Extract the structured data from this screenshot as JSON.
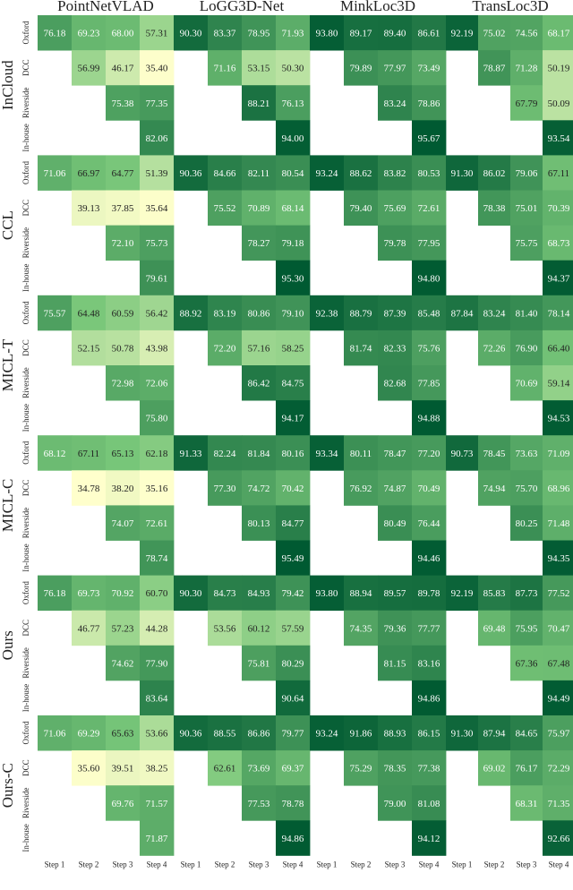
{
  "chart_data": {
    "type": "heatmap",
    "columns": [
      "PointNetVLAD",
      "LoGG3D-Net",
      "MinkLoc3D",
      "TransLoc3D"
    ],
    "rows": [
      "InCloud",
      "CCL",
      "MICL-T",
      "MICL-C",
      "Ours",
      "Ours-C"
    ],
    "subrow_labels": [
      "Oxford",
      "DCC",
      "Riverside",
      "In-house"
    ],
    "step_labels": [
      "Step 1",
      "Step 2",
      "Step 3",
      "Step 4"
    ],
    "colormap": {
      "name": "YlGn",
      "low": "#ffffcc",
      "mid": "#78c679",
      "high": "#005a32",
      "vmin": 35,
      "vmax": 95
    },
    "values": {
      "InCloud": {
        "PointNetVLAD": [
          [
            76.18,
            69.23,
            68.0,
            57.31
          ],
          [
            null,
            56.99,
            46.17,
            35.4
          ],
          [
            null,
            null,
            75.38,
            77.35
          ],
          [
            null,
            null,
            null,
            82.06
          ]
        ],
        "LoGG3D-Net": [
          [
            90.3,
            83.37,
            78.95,
            71.93
          ],
          [
            null,
            71.16,
            53.15,
            50.3
          ],
          [
            null,
            null,
            88.21,
            76.13
          ],
          [
            null,
            null,
            null,
            94.0
          ]
        ],
        "MinkLoc3D": [
          [
            93.8,
            89.17,
            89.4,
            86.61
          ],
          [
            null,
            79.89,
            77.97,
            73.49
          ],
          [
            null,
            null,
            83.24,
            78.86
          ],
          [
            null,
            null,
            null,
            95.67
          ]
        ],
        "TransLoc3D": [
          [
            92.19,
            75.02,
            74.56,
            68.17
          ],
          [
            null,
            78.87,
            71.28,
            50.19
          ],
          [
            null,
            null,
            67.79,
            50.09
          ],
          [
            null,
            null,
            null,
            93.54
          ]
        ]
      },
      "CCL": {
        "PointNetVLAD": [
          [
            71.06,
            66.97,
            64.77,
            51.39
          ],
          [
            null,
            39.13,
            37.85,
            35.64
          ],
          [
            null,
            null,
            72.1,
            75.73
          ],
          [
            null,
            null,
            null,
            79.61
          ]
        ],
        "LoGG3D-Net": [
          [
            90.36,
            84.66,
            82.11,
            80.54
          ],
          [
            null,
            75.52,
            70.89,
            68.14
          ],
          [
            null,
            null,
            78.27,
            79.18
          ],
          [
            null,
            null,
            null,
            95.3
          ]
        ],
        "MinkLoc3D": [
          [
            93.24,
            88.62,
            83.82,
            80.53
          ],
          [
            null,
            79.4,
            75.69,
            72.61
          ],
          [
            null,
            null,
            79.78,
            77.95
          ],
          [
            null,
            null,
            null,
            94.8
          ]
        ],
        "TransLoc3D": [
          [
            91.3,
            86.02,
            79.06,
            67.11
          ],
          [
            null,
            78.38,
            75.01,
            70.39
          ],
          [
            null,
            null,
            75.75,
            68.73
          ],
          [
            null,
            null,
            null,
            94.37
          ]
        ]
      },
      "MICL-T": {
        "PointNetVLAD": [
          [
            75.57,
            64.48,
            60.59,
            56.42
          ],
          [
            null,
            52.15,
            50.78,
            43.98
          ],
          [
            null,
            null,
            72.98,
            72.06
          ],
          [
            null,
            null,
            null,
            75.8
          ]
        ],
        "LoGG3D-Net": [
          [
            88.92,
            83.19,
            80.86,
            79.1
          ],
          [
            null,
            72.2,
            57.16,
            58.25
          ],
          [
            null,
            null,
            86.42,
            84.75
          ],
          [
            null,
            null,
            null,
            94.17
          ]
        ],
        "MinkLoc3D": [
          [
            92.38,
            88.79,
            87.39,
            85.48
          ],
          [
            null,
            81.74,
            82.33,
            75.76
          ],
          [
            null,
            null,
            82.68,
            77.85
          ],
          [
            null,
            null,
            null,
            94.88
          ]
        ],
        "TransLoc3D": [
          [
            87.84,
            83.24,
            81.4,
            78.14
          ],
          [
            null,
            72.26,
            76.9,
            66.4
          ],
          [
            null,
            null,
            70.69,
            59.14
          ],
          [
            null,
            null,
            null,
            94.53
          ]
        ]
      },
      "MICL-C": {
        "PointNetVLAD": [
          [
            68.12,
            67.11,
            65.13,
            62.18
          ],
          [
            null,
            34.78,
            38.2,
            35.16
          ],
          [
            null,
            null,
            74.07,
            72.61
          ],
          [
            null,
            null,
            null,
            78.74
          ]
        ],
        "LoGG3D-Net": [
          [
            91.33,
            82.24,
            81.84,
            80.16
          ],
          [
            null,
            77.3,
            74.72,
            70.42
          ],
          [
            null,
            null,
            80.13,
            84.77
          ],
          [
            null,
            null,
            null,
            95.49
          ]
        ],
        "MinkLoc3D": [
          [
            93.34,
            80.11,
            78.47,
            77.2
          ],
          [
            null,
            76.92,
            74.87,
            70.49
          ],
          [
            null,
            null,
            80.49,
            76.44
          ],
          [
            null,
            null,
            null,
            94.46
          ]
        ],
        "TransLoc3D": [
          [
            90.73,
            78.45,
            73.63,
            71.09
          ],
          [
            null,
            74.94,
            75.7,
            68.96
          ],
          [
            null,
            null,
            80.25,
            71.48
          ],
          [
            null,
            null,
            null,
            94.35
          ]
        ]
      },
      "Ours": {
        "PointNetVLAD": [
          [
            76.18,
            69.73,
            70.92,
            60.7
          ],
          [
            null,
            46.77,
            57.23,
            44.28
          ],
          [
            null,
            null,
            74.62,
            77.9
          ],
          [
            null,
            null,
            null,
            83.64
          ]
        ],
        "LoGG3D-Net": [
          [
            90.3,
            84.73,
            84.93,
            79.42
          ],
          [
            null,
            53.56,
            60.12,
            57.59
          ],
          [
            null,
            null,
            75.81,
            80.29
          ],
          [
            null,
            null,
            null,
            90.64
          ]
        ],
        "MinkLoc3D": [
          [
            93.8,
            88.94,
            89.57,
            89.78
          ],
          [
            null,
            74.35,
            79.36,
            77.77
          ],
          [
            null,
            null,
            81.15,
            83.16
          ],
          [
            null,
            null,
            null,
            94.86
          ]
        ],
        "TransLoc3D": [
          [
            92.19,
            85.83,
            87.73,
            77.52
          ],
          [
            null,
            69.48,
            75.95,
            70.47
          ],
          [
            null,
            null,
            67.36,
            67.48
          ],
          [
            null,
            null,
            null,
            94.49
          ]
        ]
      },
      "Ours-C": {
        "PointNetVLAD": [
          [
            71.06,
            69.29,
            65.63,
            53.66
          ],
          [
            null,
            35.6,
            39.51,
            38.25
          ],
          [
            null,
            null,
            69.76,
            71.57
          ],
          [
            null,
            null,
            null,
            71.87
          ]
        ],
        "LoGG3D-Net": [
          [
            90.36,
            88.55,
            86.86,
            79.77
          ],
          [
            null,
            62.61,
            73.69,
            69.37
          ],
          [
            null,
            null,
            77.53,
            78.78
          ],
          [
            null,
            null,
            null,
            94.86
          ]
        ],
        "MinkLoc3D": [
          [
            93.24,
            91.86,
            88.93,
            86.15
          ],
          [
            null,
            75.29,
            78.35,
            77.38
          ],
          [
            null,
            null,
            79.0,
            81.08
          ],
          [
            null,
            null,
            null,
            94.12
          ]
        ],
        "TransLoc3D": [
          [
            91.3,
            87.94,
            84.65,
            75.97
          ],
          [
            null,
            69.02,
            76.17,
            72.29
          ],
          [
            null,
            null,
            68.31,
            71.35
          ],
          [
            null,
            null,
            null,
            92.66
          ]
        ]
      }
    }
  }
}
